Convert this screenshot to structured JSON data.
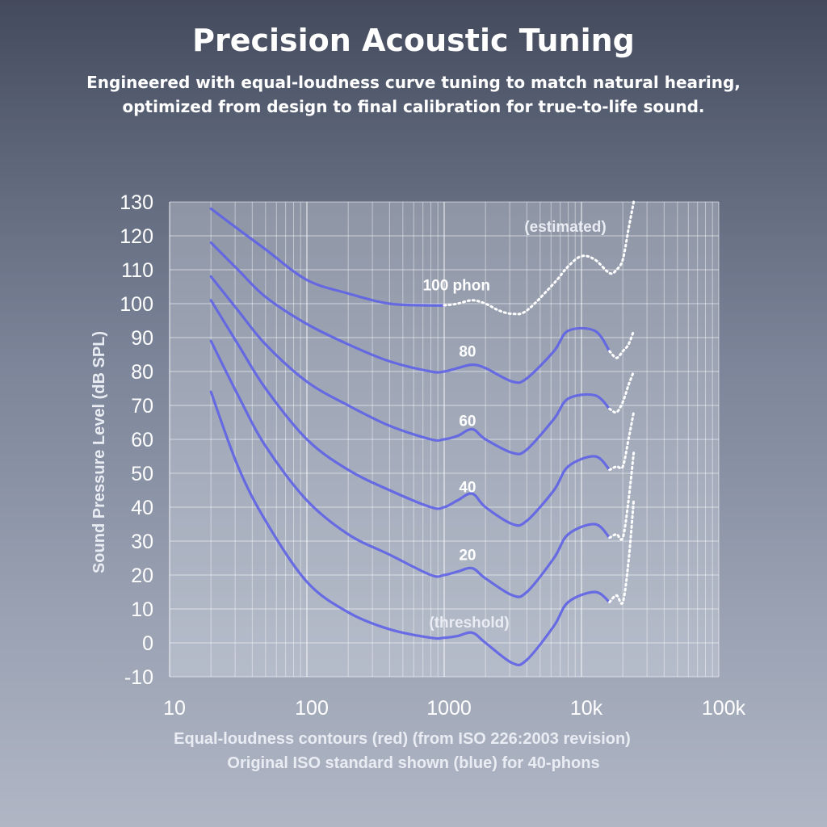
{
  "header": {
    "title": "Precision Acoustic Tuning",
    "subtitle_line1": "Engineered with equal-loudness curve tuning to match natural hearing,",
    "subtitle_line2": "optimized from design to final calibration for true-to-life sound."
  },
  "chart_data": {
    "type": "line",
    "x_scale": "log",
    "xlim": [
      10,
      100000
    ],
    "ylim": [
      -10,
      130
    ],
    "x_ticks": [
      10,
      100,
      1000,
      10000,
      100000
    ],
    "x_tick_labels": [
      "10",
      "100",
      "1000",
      "10k",
      "100k"
    ],
    "y_ticks": [
      -10,
      0,
      10,
      20,
      30,
      40,
      50,
      60,
      70,
      80,
      90,
      100,
      110,
      120,
      130
    ],
    "y_tick_labels": [
      "-10",
      "0",
      "10",
      "20",
      "30",
      "40",
      "50",
      "60",
      "70",
      "80",
      "90",
      "100",
      "110",
      "120",
      "130"
    ],
    "ylabel": "Sound Pressure Level (dB SPL)",
    "caption_line1": "Equal-loudness contours (red) (from ISO 226:2003 revision)",
    "caption_line2": "Original ISO standard shown (blue) for 40-phons",
    "grid": true,
    "colors": {
      "curve": "#5f63e6",
      "estimated": "#ffffff",
      "grid": "#ffffff",
      "plot_bg": "#d9dde6"
    },
    "annotations": {
      "estimated": "(estimated)",
      "threshold": "(threshold)"
    },
    "series": [
      {
        "label": "(threshold)",
        "points": [
          [
            20,
            74
          ],
          [
            31.5,
            52
          ],
          [
            50,
            36
          ],
          [
            100,
            18
          ],
          [
            200,
            9
          ],
          [
            400,
            4
          ],
          [
            800,
            1.5
          ],
          [
            1000,
            1.5
          ],
          [
            1250,
            2
          ],
          [
            1600,
            3
          ],
          [
            2000,
            0
          ],
          [
            3150,
            -6
          ],
          [
            4000,
            -5
          ],
          [
            6300,
            5
          ],
          [
            8000,
            12
          ],
          [
            12500,
            15
          ],
          [
            16000,
            12
          ]
        ],
        "estimated_points": [
          [
            16000,
            12
          ],
          [
            18000,
            14
          ],
          [
            20000,
            12
          ],
          [
            22000,
            24
          ],
          [
            24000,
            42
          ]
        ]
      },
      {
        "label": "20",
        "points": [
          [
            20,
            89
          ],
          [
            31.5,
            73
          ],
          [
            50,
            58
          ],
          [
            100,
            42
          ],
          [
            200,
            32
          ],
          [
            400,
            26
          ],
          [
            800,
            20
          ],
          [
            1000,
            20
          ],
          [
            1250,
            21
          ],
          [
            1600,
            22
          ],
          [
            2000,
            19
          ],
          [
            3150,
            14
          ],
          [
            4000,
            15
          ],
          [
            6300,
            25
          ],
          [
            8000,
            32
          ],
          [
            12500,
            35
          ],
          [
            16000,
            31
          ]
        ],
        "estimated_points": [
          [
            16000,
            31
          ],
          [
            18000,
            32
          ],
          [
            20000,
            31
          ],
          [
            22000,
            42
          ],
          [
            24000,
            56
          ]
        ]
      },
      {
        "label": "40",
        "points": [
          [
            20,
            101
          ],
          [
            31.5,
            88
          ],
          [
            50,
            75
          ],
          [
            100,
            60
          ],
          [
            200,
            51
          ],
          [
            400,
            45
          ],
          [
            800,
            40
          ],
          [
            1000,
            40
          ],
          [
            1250,
            42
          ],
          [
            1600,
            44
          ],
          [
            2000,
            40
          ],
          [
            3150,
            35
          ],
          [
            4000,
            36
          ],
          [
            6300,
            45
          ],
          [
            8000,
            52
          ],
          [
            12500,
            55
          ],
          [
            16000,
            51
          ]
        ],
        "estimated_points": [
          [
            16000,
            51
          ],
          [
            18000,
            52
          ],
          [
            20000,
            52
          ],
          [
            22000,
            60
          ],
          [
            24000,
            68
          ]
        ]
      },
      {
        "label": "60",
        "points": [
          [
            20,
            108
          ],
          [
            31.5,
            98
          ],
          [
            50,
            88
          ],
          [
            100,
            77
          ],
          [
            200,
            70
          ],
          [
            400,
            64
          ],
          [
            800,
            60
          ],
          [
            1000,
            60
          ],
          [
            1250,
            61
          ],
          [
            1600,
            63
          ],
          [
            2000,
            60
          ],
          [
            3150,
            56
          ],
          [
            4000,
            57
          ],
          [
            6300,
            66
          ],
          [
            8000,
            72
          ],
          [
            12500,
            73
          ],
          [
            16000,
            69
          ]
        ],
        "estimated_points": [
          [
            16000,
            69
          ],
          [
            18000,
            68
          ],
          [
            20000,
            71
          ],
          [
            22000,
            76
          ],
          [
            24000,
            80
          ]
        ]
      },
      {
        "label": "80",
        "points": [
          [
            20,
            118
          ],
          [
            31.5,
            110
          ],
          [
            50,
            102
          ],
          [
            100,
            94
          ],
          [
            200,
            88
          ],
          [
            400,
            83
          ],
          [
            800,
            80
          ],
          [
            1000,
            80
          ],
          [
            1250,
            81
          ],
          [
            1600,
            82
          ],
          [
            2000,
            81
          ],
          [
            3150,
            77
          ],
          [
            4000,
            78
          ],
          [
            6300,
            86
          ],
          [
            8000,
            92
          ],
          [
            12500,
            92
          ],
          [
            16000,
            86
          ]
        ],
        "estimated_points": [
          [
            16000,
            86
          ],
          [
            18000,
            84
          ],
          [
            20000,
            86
          ],
          [
            22000,
            88
          ],
          [
            24000,
            92
          ]
        ]
      },
      {
        "label": "100 phon",
        "points": [
          [
            20,
            128
          ],
          [
            31.5,
            122
          ],
          [
            50,
            116
          ],
          [
            100,
            107
          ],
          [
            200,
            103
          ],
          [
            400,
            100
          ],
          [
            800,
            99.5
          ],
          [
            1000,
            99.5
          ]
        ],
        "estimated_points": [
          [
            1000,
            99.5
          ],
          [
            1250,
            100
          ],
          [
            1600,
            101
          ],
          [
            2000,
            100
          ],
          [
            2500,
            98
          ],
          [
            3150,
            97
          ],
          [
            4000,
            98
          ],
          [
            6300,
            106
          ],
          [
            8000,
            111
          ],
          [
            10000,
            114
          ],
          [
            12500,
            113
          ],
          [
            16000,
            109
          ],
          [
            18000,
            110
          ],
          [
            20000,
            113
          ],
          [
            22000,
            122
          ],
          [
            24000,
            130
          ]
        ]
      }
    ]
  }
}
